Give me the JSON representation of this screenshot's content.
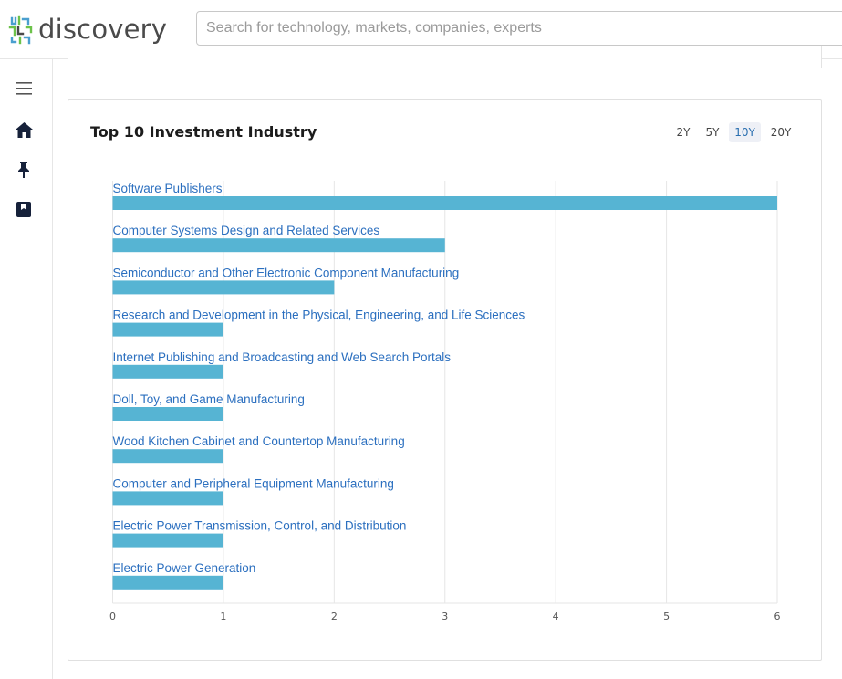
{
  "header": {
    "logo_text": "discovery",
    "search_placeholder": "Search for technology, markets, companies, experts"
  },
  "sidebar": {
    "items": [
      {
        "icon": "menu-icon"
      },
      {
        "icon": "home-icon"
      },
      {
        "icon": "pin-icon"
      },
      {
        "icon": "book-icon"
      }
    ]
  },
  "card": {
    "title": "Top 10 Investment Industry",
    "ranges": [
      "2Y",
      "5Y",
      "10Y",
      "20Y"
    ],
    "active_range": "10Y"
  },
  "colors": {
    "bar": "#56b4d3",
    "label": "#2b6fbf",
    "grid": "#e6e6e6",
    "axis_text": "#555555"
  },
  "chart_data": {
    "type": "bar",
    "orientation": "horizontal",
    "categories": [
      "Software Publishers",
      "Computer Systems Design and Related Services",
      "Semiconductor and Other Electronic Component Manufacturing",
      "Research and Development in the Physical, Engineering, and Life Sciences",
      "Internet Publishing and Broadcasting and Web Search Portals",
      "Doll, Toy, and Game Manufacturing",
      "Wood Kitchen Cabinet and Countertop Manufacturing",
      "Computer and Peripheral Equipment Manufacturing",
      "Electric Power Transmission, Control, and Distribution",
      "Electric Power Generation"
    ],
    "values": [
      6,
      3,
      2,
      1,
      1,
      1,
      1,
      1,
      1,
      1
    ],
    "xlim": [
      0,
      6
    ],
    "xticks": [
      "0",
      "1",
      "2",
      "3",
      "4",
      "5",
      "6"
    ],
    "grid": true,
    "legend": "none"
  }
}
